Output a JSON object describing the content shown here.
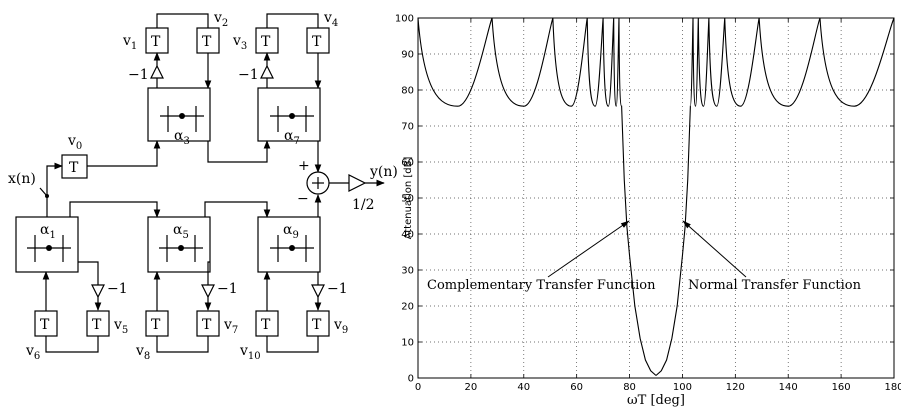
{
  "diagram": {
    "input_label": "x(n)",
    "output_label": "y(n)",
    "gain_label": "1/2",
    "delay_label": "T",
    "sum_plus": "+",
    "sum_minus": "−",
    "minus_one": "−1",
    "states": [
      "v",
      "v",
      "v",
      "v",
      "v",
      "v",
      "v",
      "v",
      "v",
      "v",
      "v"
    ],
    "state_subscripts": [
      "0",
      "1",
      "2",
      "3",
      "4",
      "5",
      "6",
      "7",
      "8",
      "9",
      "10"
    ],
    "adaptors": [
      {
        "symbol": "α",
        "subscript": "3"
      },
      {
        "symbol": "α",
        "subscript": "7"
      },
      {
        "symbol": "α",
        "subscript": "1"
      },
      {
        "symbol": "α",
        "subscript": "5"
      },
      {
        "symbol": "α",
        "subscript": "9"
      }
    ]
  },
  "chart_data": {
    "type": "line",
    "xlabel": "ωT  [deg]",
    "ylabel": "Attenuation [dB]",
    "xlim": [
      0,
      180
    ],
    "ylim": [
      0,
      100
    ],
    "xticks": [
      "0",
      "20",
      "40",
      "60",
      "80",
      "100",
      "120",
      "140",
      "160",
      "180"
    ],
    "yticks": [
      "0",
      "10",
      "20",
      "30",
      "40",
      "50",
      "60",
      "70",
      "80",
      "90",
      "100"
    ],
    "grid": "dotted",
    "filter_order": 11,
    "stopband_min_db": 75.5,
    "curves": [
      {
        "label": "Normal Transfer Function",
        "stopband_edge_deg": 103,
        "poles_deg": [
          103.8,
          105.8,
          109.9,
          116.1,
          128.8,
          151.6
        ],
        "points": [
          [
            90,
            0.7
          ],
          [
            92,
            2
          ],
          [
            94,
            5
          ],
          [
            96,
            11
          ],
          [
            98,
            20
          ],
          [
            100,
            34
          ],
          [
            101,
            42
          ],
          [
            102,
            55
          ],
          [
            103,
            75.5
          ],
          [
            104,
            100
          ],
          [
            105,
            75.5
          ],
          [
            106,
            100
          ],
          [
            108,
            75.5
          ],
          [
            110,
            100
          ],
          [
            113,
            75.5
          ],
          [
            116,
            100
          ],
          [
            122,
            75.5
          ],
          [
            129,
            100
          ],
          [
            140,
            75.5
          ],
          [
            152,
            100
          ],
          [
            165,
            75.5
          ],
          [
            180,
            100
          ]
        ]
      },
      {
        "label": "Complementary Transfer Function",
        "stopband_edge_deg": 77,
        "poles_deg": [
          76.2,
          74.2,
          70.1,
          63.9,
          51.2,
          28.4
        ],
        "points": [
          [
            0,
            100
          ],
          [
            15,
            75.5
          ],
          [
            28,
            100
          ],
          [
            40,
            75.5
          ],
          [
            51,
            100
          ],
          [
            58,
            75.5
          ],
          [
            64,
            100
          ],
          [
            67,
            75.5
          ],
          [
            70,
            100
          ],
          [
            72,
            75.5
          ],
          [
            74,
            100
          ],
          [
            75,
            75.5
          ],
          [
            76,
            100
          ],
          [
            77,
            75.5
          ],
          [
            78,
            55
          ],
          [
            79,
            42
          ],
          [
            80,
            34
          ],
          [
            82,
            20
          ],
          [
            84,
            11
          ],
          [
            86,
            5
          ],
          [
            88,
            2
          ],
          [
            90,
            0.7
          ]
        ]
      }
    ],
    "annotations": [
      {
        "text": "Complementary Transfer Function",
        "points_to_deg": 80.5,
        "points_to_db": 43
      },
      {
        "text": "Normal Transfer Function",
        "points_to_deg": 99.5,
        "points_to_db": 43
      }
    ]
  }
}
